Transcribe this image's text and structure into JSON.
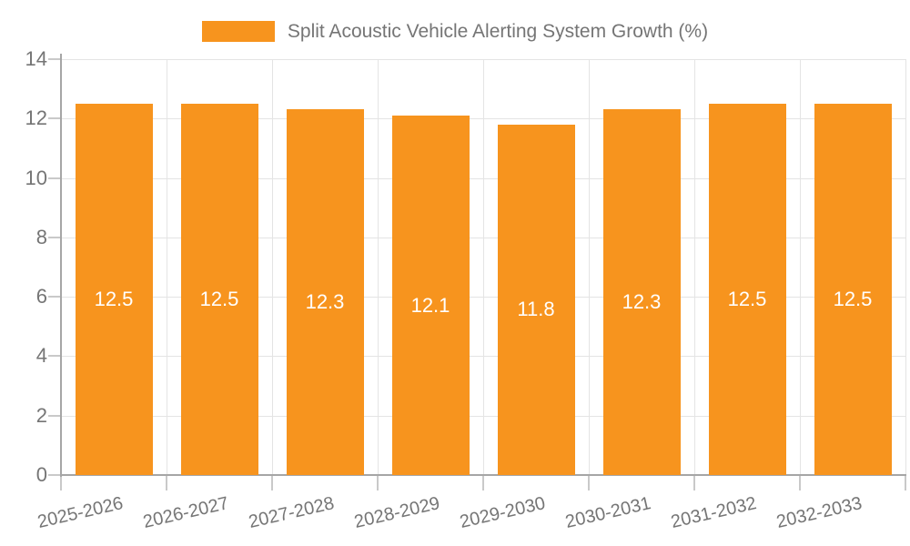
{
  "legend": {
    "label": "Split Acoustic Vehicle Alerting System Growth (%)"
  },
  "chart_data": {
    "type": "bar",
    "title": "Split Acoustic Vehicle Alerting System Growth (%)",
    "categories": [
      "2025-2026",
      "2026-2027",
      "2027-2028",
      "2028-2029",
      "2029-2030",
      "2030-2031",
      "2031-2032",
      "2032-2033"
    ],
    "values": [
      12.5,
      12.5,
      12.3,
      12.1,
      11.8,
      12.3,
      12.5,
      12.5
    ],
    "bar_labels": [
      "12.5",
      "12.5",
      "12.3",
      "12.1",
      "11.8",
      "12.3",
      "12.5",
      "12.5"
    ],
    "xlabel": "",
    "ylabel": "",
    "ylim": [
      0,
      14
    ],
    "yticks": [
      0,
      2,
      4,
      6,
      8,
      10,
      12,
      14
    ],
    "grid": true,
    "legend_position": "top-center",
    "colors": {
      "bar": "#F7941E",
      "bar_label": "#FFFFFF",
      "text": "#757575",
      "axis_line": "#A6A6A6",
      "tick_line": "#C9C9C9",
      "grid_line": "#E4E4E4"
    }
  }
}
